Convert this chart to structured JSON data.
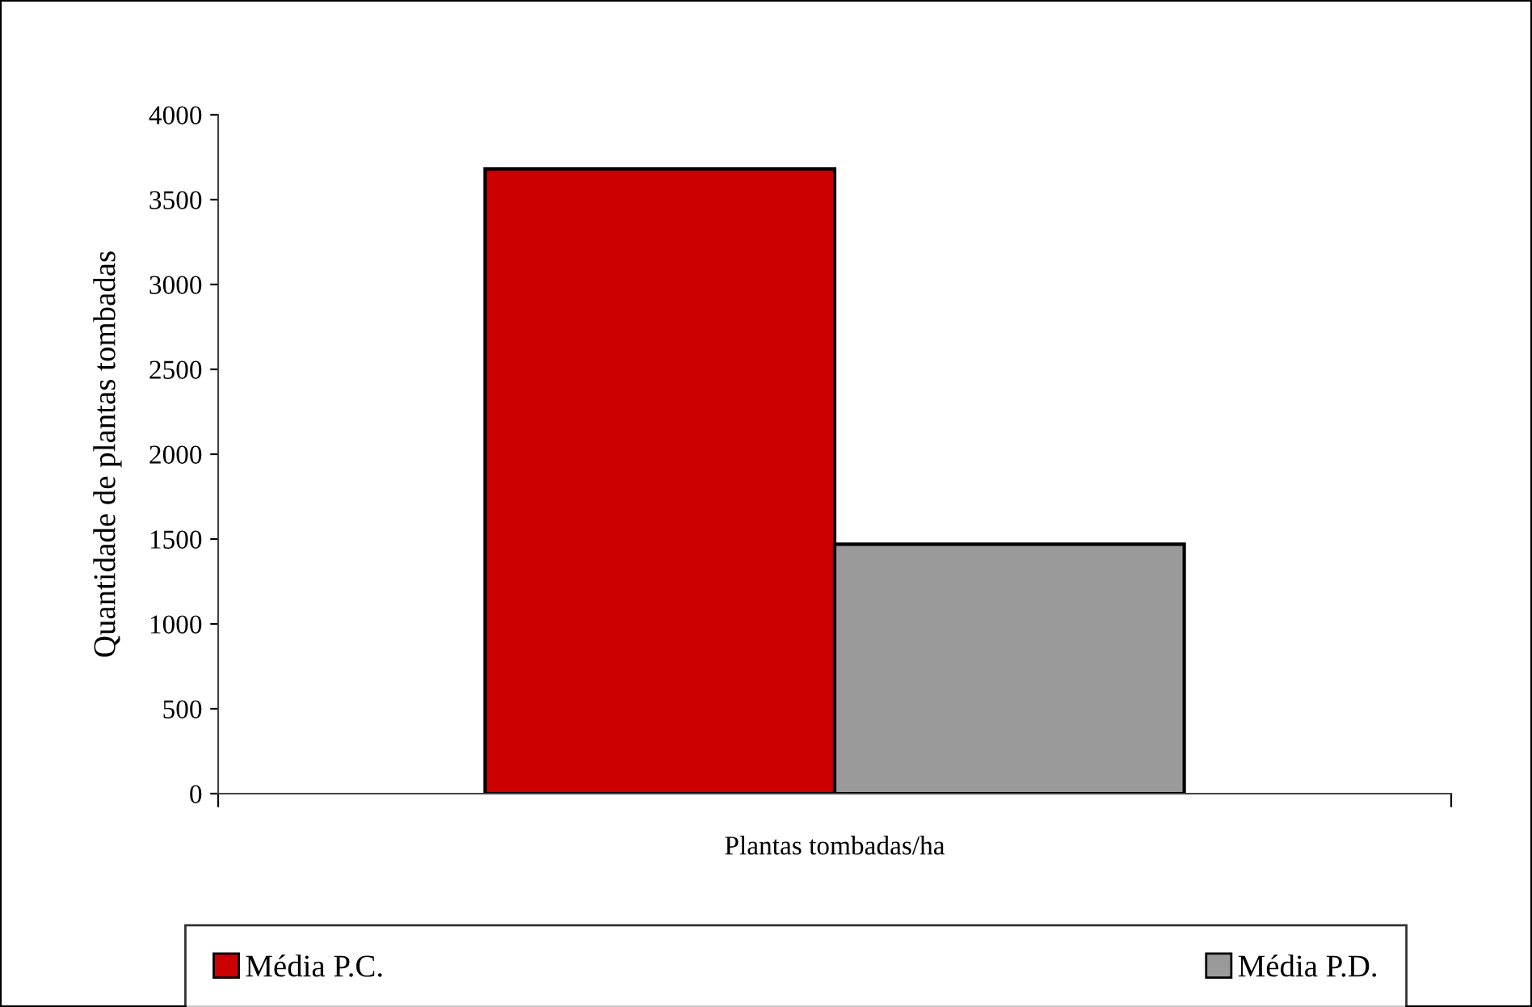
{
  "chart_data": {
    "type": "bar",
    "ylabel": "Quantidade de plantas tombadas",
    "categories": [
      "Plantas tombadas/ha"
    ],
    "series": [
      {
        "name": "Média P.C.",
        "color": "#cc0000",
        "values": [
          3680
        ]
      },
      {
        "name": "Média P.D.",
        "color": "#9a9a9a",
        "values": [
          1470
        ]
      }
    ],
    "ylim": [
      0,
      4000
    ],
    "yticks": [
      0,
      500,
      1000,
      1500,
      2000,
      2500,
      3000,
      3500,
      4000
    ],
    "grid": false,
    "legend": "bottom"
  }
}
